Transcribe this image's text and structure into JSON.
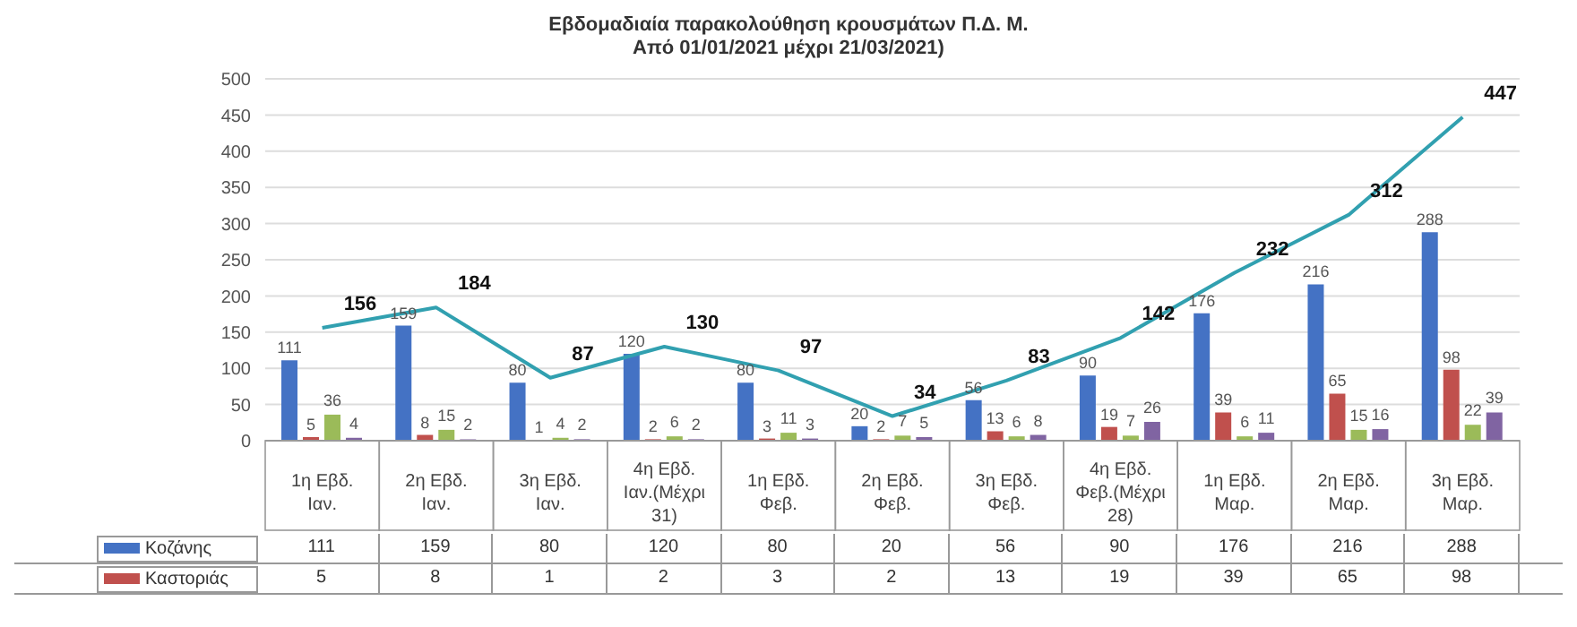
{
  "chart_data": {
    "type": "bar",
    "title": "Εβδομαδιαία παρακολούθηση κρουσμάτων Π.Δ. Μ.",
    "subtitle": "Από 01/01/2021 μέχρι 21/03/2021)",
    "categories": [
      "1η Εβδ. Ιαν.",
      "2η Εβδ. Ιαν.",
      "3η Εβδ. Ιαν.",
      "4η Εβδ. Ιαν.(Μέχρι 31)",
      "1η Εβδ. Φεβ.",
      "2η Εβδ. Φεβ.",
      "3η Εβδ. Φεβ.",
      "4η Εβδ. Φεβ.(Μέχρι 28)",
      "1η Εβδ. Μαρ.",
      "2η Εβδ. Μαρ.",
      "3η Εβδ. Μαρ."
    ],
    "series": [
      {
        "name": "Κοζάνης",
        "color": "#4472c4",
        "values": [
          111,
          159,
          80,
          120,
          80,
          20,
          56,
          90,
          176,
          216,
          288
        ],
        "value_labels": [
          "111",
          "159",
          "80",
          "120",
          "80",
          "20",
          "56",
          "90",
          "176",
          "216",
          "288"
        ]
      },
      {
        "name": "Καστοριάς",
        "color": "#c0504d",
        "values": [
          5,
          8,
          1,
          2,
          3,
          2,
          13,
          19,
          39,
          65,
          98
        ],
        "value_labels": [
          "5",
          "8",
          "1",
          "2",
          "3",
          "2",
          "13",
          "19",
          "39",
          "65",
          "98"
        ]
      },
      {
        "color": "#9bbb59",
        "values": [
          36,
          15,
          4,
          6,
          11,
          7,
          6,
          7,
          6,
          15,
          22
        ]
      },
      {
        "color": "#8064a2",
        "values": [
          4,
          2,
          2,
          2,
          3,
          5,
          8,
          26,
          11,
          16,
          39
        ]
      },
      {
        "type": "line",
        "color": "#31a0b0",
        "values": [
          156,
          184,
          87,
          130,
          97,
          34,
          83,
          142,
          232,
          312,
          447
        ]
      }
    ],
    "annotations": [
      "111",
      "159",
      "80",
      "120",
      "80",
      "20",
      "56",
      "90",
      "176",
      "216",
      "288",
      "5",
      "8",
      "1",
      "2",
      "3",
      "2",
      "13",
      "19",
      "39",
      "65",
      "98"
    ],
    "ylim": [
      0,
      500
    ],
    "yticks": [
      0,
      50,
      100,
      150,
      200,
      250,
      300,
      350,
      400,
      450,
      500
    ],
    "grid": "y",
    "data_labels": true,
    "legend": "bottom",
    "marker": "none"
  }
}
